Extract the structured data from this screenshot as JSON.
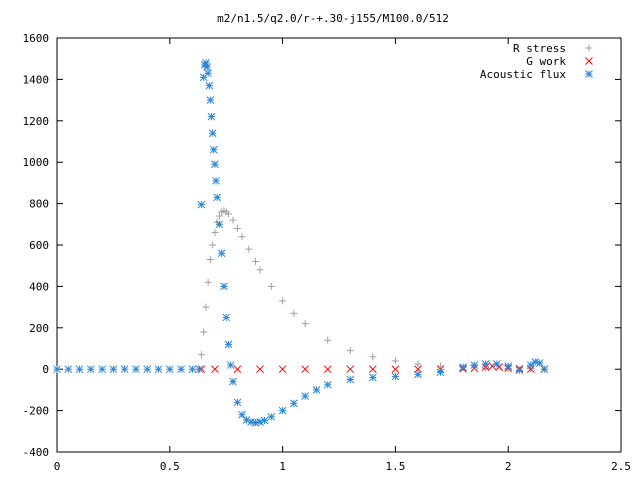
{
  "chart_data": {
    "type": "scatter",
    "title": "m2/n1.5/q2.0/r-+.30-j155/M100.0/512",
    "xlabel": "",
    "ylabel": "",
    "xlim": [
      0,
      2.5
    ],
    "ylim": [
      -400,
      1600
    ],
    "x_ticks": [
      "0",
      "0.5",
      "1",
      "1.5",
      "2",
      "2.5"
    ],
    "y_ticks": [
      "-400",
      "-200",
      "0",
      "200",
      "400",
      "600",
      "800",
      "1000",
      "1200",
      "1400",
      "1600"
    ],
    "legend_position": "top-right",
    "grid": false,
    "series": [
      {
        "name": "R stress",
        "marker": "plus",
        "color": "#a0a0a0",
        "x": [
          0.64,
          0.65,
          0.66,
          0.67,
          0.68,
          0.69,
          0.7,
          0.71,
          0.72,
          0.73,
          0.74,
          0.75,
          0.76,
          0.78,
          0.8,
          0.82,
          0.85,
          0.88,
          0.9,
          0.95,
          1.0,
          1.05,
          1.1,
          1.2,
          1.3,
          1.4,
          1.5,
          1.6,
          1.7,
          1.8,
          1.9,
          2.0,
          2.1,
          2.16
        ],
        "y": [
          70,
          180,
          300,
          420,
          530,
          600,
          660,
          710,
          740,
          760,
          765,
          760,
          750,
          720,
          680,
          640,
          580,
          520,
          480,
          400,
          330,
          270,
          220,
          140,
          90,
          60,
          40,
          25,
          15,
          10,
          5,
          3,
          2,
          0
        ]
      },
      {
        "name": "G work",
        "marker": "cross",
        "color": "#ff0000",
        "x": [
          0.64,
          0.7,
          0.8,
          0.9,
          1.0,
          1.1,
          1.2,
          1.3,
          1.4,
          1.5,
          1.6,
          1.7,
          1.8,
          1.85,
          1.9,
          1.93,
          1.96,
          2.0,
          2.05,
          2.1,
          2.16
        ],
        "y": [
          0,
          0,
          0,
          0,
          0,
          0,
          0,
          0,
          0,
          0,
          0,
          0,
          2,
          5,
          10,
          15,
          10,
          5,
          2,
          0,
          0
        ]
      },
      {
        "name": "Acoustic flux",
        "marker": "star",
        "color": "#2a86d8",
        "x": [
          0,
          0.05,
          0.1,
          0.15,
          0.2,
          0.25,
          0.3,
          0.35,
          0.4,
          0.45,
          0.5,
          0.55,
          0.6,
          0.63,
          0.64,
          0.65,
          0.655,
          0.66,
          0.665,
          0.67,
          0.675,
          0.68,
          0.685,
          0.69,
          0.695,
          0.7,
          0.705,
          0.71,
          0.72,
          0.73,
          0.74,
          0.75,
          0.76,
          0.77,
          0.78,
          0.8,
          0.82,
          0.84,
          0.86,
          0.88,
          0.9,
          0.92,
          0.95,
          1.0,
          1.05,
          1.1,
          1.15,
          1.2,
          1.3,
          1.4,
          1.5,
          1.6,
          1.7,
          1.8,
          1.85,
          1.9,
          1.95,
          2.0,
          2.05,
          2.1,
          2.12,
          2.14,
          2.16
        ],
        "y": [
          0,
          0,
          0,
          0,
          0,
          0,
          0,
          0,
          0,
          0,
          0,
          0,
          0,
          0,
          795,
          1410,
          1470,
          1480,
          1460,
          1430,
          1370,
          1300,
          1220,
          1140,
          1060,
          990,
          910,
          830,
          700,
          560,
          400,
          250,
          120,
          20,
          -60,
          -160,
          -220,
          -245,
          -255,
          -258,
          -255,
          -248,
          -230,
          -200,
          -165,
          -130,
          -100,
          -75,
          -50,
          -40,
          -35,
          -25,
          -15,
          10,
          20,
          25,
          25,
          15,
          -5,
          20,
          35,
          30,
          0
        ]
      }
    ]
  }
}
